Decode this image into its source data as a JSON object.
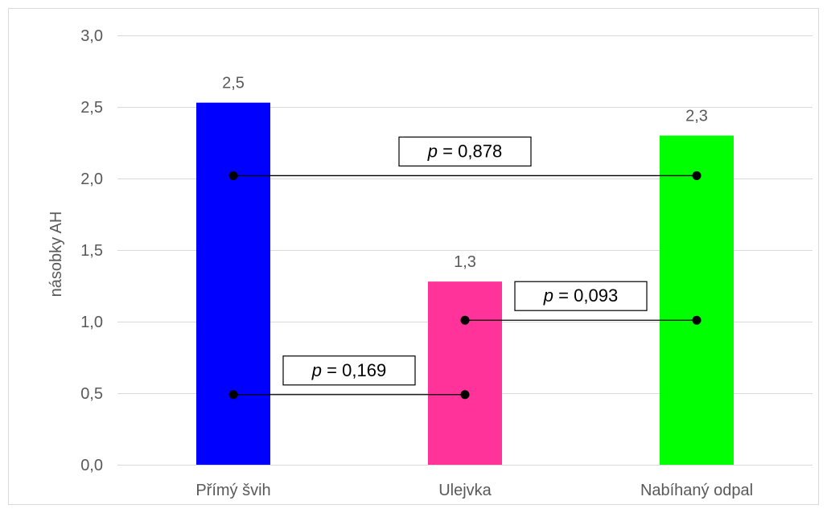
{
  "chart_data": {
    "type": "bar",
    "categories": [
      "Přímý švih",
      "Ulejvka",
      "Nabíhaný odpal"
    ],
    "values": [
      2.53,
      1.28,
      2.3
    ],
    "data_labels": [
      "2,5",
      "1,3",
      "2,3"
    ],
    "bar_colors": [
      "#0000ff",
      "#ff3399",
      "#00ff00"
    ],
    "ylabel": "násobky AH",
    "xlabel": "",
    "ylim": [
      0,
      3
    ],
    "y_ticks": [
      "0,0",
      "0,5",
      "1,0",
      "1,5",
      "2,0",
      "2,5",
      "3,0"
    ],
    "y_tick_values": [
      0,
      0.5,
      1.0,
      1.5,
      2.0,
      2.5,
      3.0
    ],
    "grid": true,
    "legend": "none",
    "comparisons": [
      {
        "from": 0,
        "to": 2,
        "y": 2.02,
        "p_symbol": "p",
        "p_text": " = 0,878"
      },
      {
        "from": 1,
        "to": 2,
        "y": 1.01,
        "p_symbol": "p",
        "p_text": " = 0,093"
      },
      {
        "from": 0,
        "to": 1,
        "y": 0.49,
        "p_symbol": "p",
        "p_text": " = 0,169"
      }
    ]
  },
  "colors": {
    "grid": "#d9d9d9",
    "axis_text": "#595959",
    "frame": "#d9d9d9",
    "connector": "#000000"
  }
}
